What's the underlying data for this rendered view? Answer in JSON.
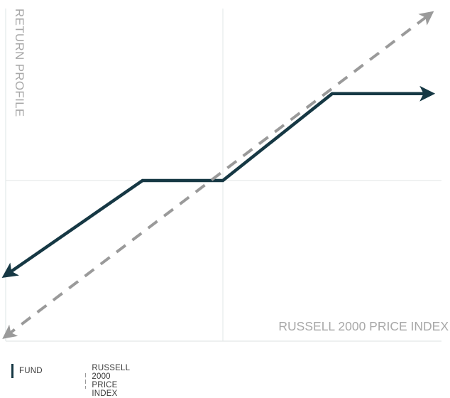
{
  "chart_data": {
    "type": "line",
    "ylabel": "RETURN PROFILE",
    "xlabel": "RUSSELL 2000 PRICE INDEX",
    "grid": true,
    "xlim": [
      -1,
      1
    ],
    "ylim": [
      -1,
      1
    ],
    "series": [
      {
        "name": "FUND",
        "style": "solid",
        "color": "#163844",
        "x": [
          -1,
          -0.37,
          0,
          0.5,
          0.95
        ],
        "y": [
          -0.59,
          0,
          0,
          0.505,
          0.505
        ]
      },
      {
        "name": "RUSSELL 2000 PRICE INDEX",
        "style": "dashed",
        "color": "#9a9a9a",
        "x": [
          -1,
          0.95
        ],
        "y": [
          -0.97,
          0.97
        ]
      }
    ],
    "legend": [
      {
        "label": "FUND",
        "style": "solid"
      },
      {
        "label": "RUSSELL 2000 PRICE INDEX",
        "style": "dashed"
      }
    ]
  }
}
